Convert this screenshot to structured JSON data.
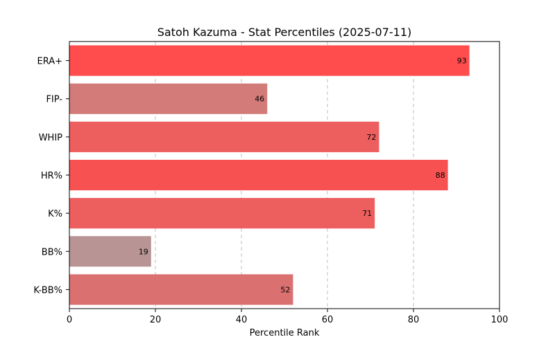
{
  "chart_data": {
    "type": "bar",
    "orientation": "horizontal",
    "title": "Satoh Kazuma - Stat Percentiles (2025-07-11)",
    "xlabel": "Percentile Rank",
    "ylabel": "",
    "xlim": [
      0,
      100
    ],
    "x_ticks": [
      0,
      20,
      40,
      60,
      80,
      100
    ],
    "grid": "x-only dashed",
    "categories": [
      "ERA+",
      "FIP-",
      "WHIP",
      "HR%",
      "K%",
      "BB%",
      "K-BB%"
    ],
    "values": [
      93,
      46,
      72,
      88,
      71,
      19,
      52
    ],
    "colors": [
      "#ff4c4c",
      "#d27b78",
      "#ed5e5e",
      "#f85151",
      "#ed5f5f",
      "#b89494",
      "#db7070"
    ]
  }
}
